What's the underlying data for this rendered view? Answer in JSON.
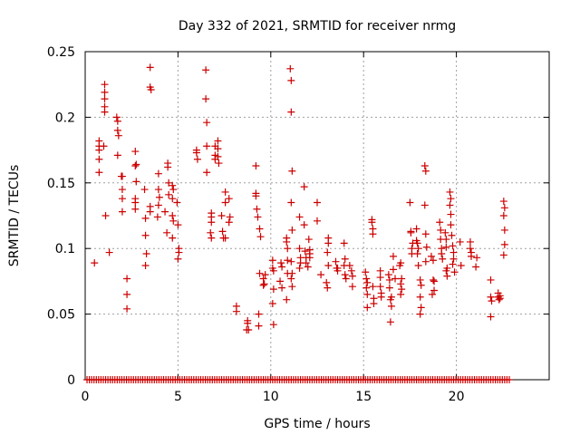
{
  "chart_data": {
    "type": "scatter",
    "title": "Day 332 of 2021, SRMTID for receiver nrmg",
    "xlabel": "GPS time / hours",
    "ylabel": "SRMTID / TECUs",
    "xlim": [
      0,
      25
    ],
    "ylim": [
      0,
      0.25
    ],
    "xticks": [
      0,
      5,
      10,
      15,
      20
    ],
    "yticks": [
      0,
      0.05,
      0.1,
      0.15,
      0.2,
      0.25
    ],
    "xtick_labels": [
      "0",
      "5",
      "10",
      "15",
      "20"
    ],
    "ytick_labels": [
      "0",
      "0.05",
      "0.1",
      "0.15",
      "0.2",
      "0.25"
    ],
    "grid": true,
    "marker": "+",
    "marker_color": "#cc0000",
    "zero_line_range": [
      0.1,
      22.9
    ],
    "zero_line_step": 0.125,
    "series": [
      {
        "name": "SRMTID",
        "points": [
          [
            0.5,
            0.089
          ],
          [
            0.75,
            0.182
          ],
          [
            0.75,
            0.178
          ],
          [
            0.75,
            0.175
          ],
          [
            0.75,
            0.168
          ],
          [
            0.75,
            0.158
          ],
          [
            1.05,
            0.225
          ],
          [
            1.05,
            0.219
          ],
          [
            1.05,
            0.214
          ],
          [
            1.05,
            0.208
          ],
          [
            1.05,
            0.204
          ],
          [
            1.0,
            0.178
          ],
          [
            1.1,
            0.125
          ],
          [
            1.3,
            0.097
          ],
          [
            1.7,
            0.2
          ],
          [
            1.75,
            0.197
          ],
          [
            1.75,
            0.19
          ],
          [
            1.8,
            0.186
          ],
          [
            1.75,
            0.171
          ],
          [
            1.95,
            0.155
          ],
          [
            2.0,
            0.155
          ],
          [
            2.0,
            0.145
          ],
          [
            2.0,
            0.138
          ],
          [
            2.0,
            0.128
          ],
          [
            2.25,
            0.077
          ],
          [
            2.25,
            0.065
          ],
          [
            2.25,
            0.054
          ],
          [
            2.7,
            0.174
          ],
          [
            2.7,
            0.163
          ],
          [
            2.75,
            0.164
          ],
          [
            2.75,
            0.151
          ],
          [
            2.7,
            0.138
          ],
          [
            2.7,
            0.135
          ],
          [
            2.7,
            0.13
          ],
          [
            3.2,
            0.145
          ],
          [
            3.25,
            0.123
          ],
          [
            3.25,
            0.11
          ],
          [
            3.3,
            0.096
          ],
          [
            3.25,
            0.087
          ],
          [
            3.5,
            0.238
          ],
          [
            3.5,
            0.223
          ],
          [
            3.55,
            0.221
          ],
          [
            3.5,
            0.132
          ],
          [
            3.5,
            0.128
          ],
          [
            3.95,
            0.157
          ],
          [
            3.95,
            0.145
          ],
          [
            4.0,
            0.139
          ],
          [
            3.95,
            0.133
          ],
          [
            3.9,
            0.124
          ],
          [
            4.3,
            0.128
          ],
          [
            4.45,
            0.165
          ],
          [
            4.45,
            0.162
          ],
          [
            4.5,
            0.15
          ],
          [
            4.5,
            0.141
          ],
          [
            4.4,
            0.112
          ],
          [
            4.7,
            0.148
          ],
          [
            4.75,
            0.145
          ],
          [
            4.7,
            0.138
          ],
          [
            4.7,
            0.125
          ],
          [
            4.75,
            0.121
          ],
          [
            4.7,
            0.108
          ],
          [
            5.0,
            0.118
          ],
          [
            5.05,
            0.1
          ],
          [
            5.05,
            0.097
          ],
          [
            5.0,
            0.092
          ],
          [
            4.95,
            0.135
          ],
          [
            6.0,
            0.175
          ],
          [
            6.0,
            0.173
          ],
          [
            6.05,
            0.168
          ],
          [
            6.5,
            0.236
          ],
          [
            6.5,
            0.214
          ],
          [
            6.55,
            0.196
          ],
          [
            6.55,
            0.178
          ],
          [
            6.55,
            0.158
          ],
          [
            6.8,
            0.127
          ],
          [
            6.8,
            0.124
          ],
          [
            6.8,
            0.12
          ],
          [
            6.75,
            0.112
          ],
          [
            6.8,
            0.108
          ],
          [
            7.0,
            0.178
          ],
          [
            7.0,
            0.171
          ],
          [
            7.0,
            0.168
          ],
          [
            7.15,
            0.182
          ],
          [
            7.15,
            0.176
          ],
          [
            7.15,
            0.17
          ],
          [
            7.2,
            0.165
          ],
          [
            7.35,
            0.125
          ],
          [
            7.4,
            0.113
          ],
          [
            7.45,
            0.108
          ],
          [
            7.55,
            0.108
          ],
          [
            7.55,
            0.143
          ],
          [
            7.55,
            0.135
          ],
          [
            7.75,
            0.138
          ],
          [
            7.8,
            0.124
          ],
          [
            7.75,
            0.12
          ],
          [
            8.15,
            0.056
          ],
          [
            8.15,
            0.052
          ],
          [
            8.75,
            0.045
          ],
          [
            8.75,
            0.043
          ],
          [
            8.7,
            0.038
          ],
          [
            8.8,
            0.038
          ],
          [
            9.2,
            0.163
          ],
          [
            9.2,
            0.142
          ],
          [
            9.2,
            0.14
          ],
          [
            9.25,
            0.13
          ],
          [
            9.3,
            0.124
          ],
          [
            9.4,
            0.115
          ],
          [
            9.45,
            0.109
          ],
          [
            9.4,
            0.081
          ],
          [
            9.35,
            0.05
          ],
          [
            9.35,
            0.041
          ],
          [
            9.6,
            0.077
          ],
          [
            9.6,
            0.072
          ],
          [
            9.65,
            0.073
          ],
          [
            9.7,
            0.08
          ],
          [
            10.1,
            0.091
          ],
          [
            10.1,
            0.085
          ],
          [
            10.15,
            0.083
          ],
          [
            10.15,
            0.069
          ],
          [
            10.1,
            0.058
          ],
          [
            10.15,
            0.042
          ],
          [
            10.5,
            0.075
          ],
          [
            10.55,
            0.089
          ],
          [
            10.6,
            0.086
          ],
          [
            10.6,
            0.07
          ],
          [
            10.85,
            0.108
          ],
          [
            10.85,
            0.105
          ],
          [
            10.9,
            0.1
          ],
          [
            10.9,
            0.091
          ],
          [
            10.9,
            0.081
          ],
          [
            10.85,
            0.061
          ],
          [
            11.05,
            0.237
          ],
          [
            11.1,
            0.228
          ],
          [
            11.1,
            0.204
          ],
          [
            11.15,
            0.159
          ],
          [
            11.1,
            0.135
          ],
          [
            11.15,
            0.114
          ],
          [
            11.1,
            0.09
          ],
          [
            11.15,
            0.081
          ],
          [
            11.1,
            0.077
          ],
          [
            11.15,
            0.071
          ],
          [
            11.55,
            0.124
          ],
          [
            11.55,
            0.1
          ],
          [
            11.6,
            0.093
          ],
          [
            11.6,
            0.089
          ],
          [
            11.55,
            0.085
          ],
          [
            11.8,
            0.147
          ],
          [
            11.8,
            0.118
          ],
          [
            11.85,
            0.098
          ],
          [
            11.9,
            0.093
          ],
          [
            11.9,
            0.089
          ],
          [
            12.0,
            0.086
          ],
          [
            12.05,
            0.107
          ],
          [
            12.1,
            0.099
          ],
          [
            12.1,
            0.096
          ],
          [
            12.1,
            0.093
          ],
          [
            12.5,
            0.135
          ],
          [
            12.5,
            0.121
          ],
          [
            12.7,
            0.08
          ],
          [
            13.1,
            0.108
          ],
          [
            13.1,
            0.104
          ],
          [
            13.05,
            0.097
          ],
          [
            13.1,
            0.087
          ],
          [
            13.0,
            0.074
          ],
          [
            13.05,
            0.07
          ],
          [
            13.5,
            0.09
          ],
          [
            13.55,
            0.085
          ],
          [
            13.6,
            0.083
          ],
          [
            13.6,
            0.085
          ],
          [
            13.95,
            0.104
          ],
          [
            14.0,
            0.092
          ],
          [
            13.95,
            0.087
          ],
          [
            14.0,
            0.08
          ],
          [
            14.05,
            0.077
          ],
          [
            14.25,
            0.087
          ],
          [
            14.35,
            0.083
          ],
          [
            14.4,
            0.079
          ],
          [
            14.4,
            0.071
          ],
          [
            15.1,
            0.082
          ],
          [
            15.15,
            0.077
          ],
          [
            15.2,
            0.074
          ],
          [
            15.15,
            0.07
          ],
          [
            15.2,
            0.065
          ],
          [
            15.2,
            0.055
          ],
          [
            15.45,
            0.122
          ],
          [
            15.45,
            0.12
          ],
          [
            15.5,
            0.115
          ],
          [
            15.5,
            0.111
          ],
          [
            15.5,
            0.071
          ],
          [
            15.55,
            0.062
          ],
          [
            15.55,
            0.058
          ],
          [
            15.9,
            0.083
          ],
          [
            15.9,
            0.078
          ],
          [
            15.9,
            0.071
          ],
          [
            15.95,
            0.066
          ],
          [
            15.95,
            0.063
          ],
          [
            16.35,
            0.08
          ],
          [
            16.4,
            0.076
          ],
          [
            16.4,
            0.07
          ],
          [
            16.5,
            0.063
          ],
          [
            16.45,
            0.061
          ],
          [
            16.5,
            0.056
          ],
          [
            16.45,
            0.044
          ],
          [
            16.6,
            0.094
          ],
          [
            16.6,
            0.084
          ],
          [
            16.7,
            0.077
          ],
          [
            16.95,
            0.087
          ],
          [
            17.0,
            0.089
          ],
          [
            17.05,
            0.077
          ],
          [
            17.0,
            0.073
          ],
          [
            17.05,
            0.069
          ],
          [
            17.0,
            0.065
          ],
          [
            17.5,
            0.135
          ],
          [
            17.55,
            0.113
          ],
          [
            17.55,
            0.112
          ],
          [
            17.6,
            0.1
          ],
          [
            17.6,
            0.096
          ],
          [
            17.65,
            0.104
          ],
          [
            17.85,
            0.115
          ],
          [
            17.85,
            0.106
          ],
          [
            17.9,
            0.104
          ],
          [
            17.95,
            0.1
          ],
          [
            17.9,
            0.096
          ],
          [
            17.95,
            0.087
          ],
          [
            18.05,
            0.076
          ],
          [
            18.1,
            0.072
          ],
          [
            18.05,
            0.063
          ],
          [
            18.1,
            0.055
          ],
          [
            18.05,
            0.05
          ],
          [
            18.3,
            0.163
          ],
          [
            18.35,
            0.159
          ],
          [
            18.3,
            0.133
          ],
          [
            18.35,
            0.111
          ],
          [
            18.4,
            0.101
          ],
          [
            18.35,
            0.09
          ],
          [
            18.65,
            0.094
          ],
          [
            18.75,
            0.091
          ],
          [
            18.75,
            0.076
          ],
          [
            18.8,
            0.075
          ],
          [
            18.7,
            0.065
          ],
          [
            18.8,
            0.068
          ],
          [
            19.1,
            0.12
          ],
          [
            19.15,
            0.114
          ],
          [
            19.15,
            0.107
          ],
          [
            19.2,
            0.1
          ],
          [
            19.2,
            0.096
          ],
          [
            19.25,
            0.092
          ],
          [
            19.4,
            0.112
          ],
          [
            19.45,
            0.107
          ],
          [
            19.45,
            0.101
          ],
          [
            19.5,
            0.085
          ],
          [
            19.45,
            0.083
          ],
          [
            19.5,
            0.079
          ],
          [
            19.65,
            0.143
          ],
          [
            19.7,
            0.138
          ],
          [
            19.65,
            0.133
          ],
          [
            19.7,
            0.126
          ],
          [
            19.7,
            0.118
          ],
          [
            19.75,
            0.11
          ],
          [
            19.8,
            0.102
          ],
          [
            19.85,
            0.097
          ],
          [
            19.85,
            0.092
          ],
          [
            19.8,
            0.088
          ],
          [
            19.9,
            0.082
          ],
          [
            20.2,
            0.105
          ],
          [
            20.25,
            0.087
          ],
          [
            20.75,
            0.105
          ],
          [
            20.75,
            0.1
          ],
          [
            20.8,
            0.094
          ],
          [
            20.8,
            0.097
          ],
          [
            21.05,
            0.086
          ],
          [
            21.1,
            0.093
          ],
          [
            21.85,
            0.076
          ],
          [
            21.85,
            0.063
          ],
          [
            21.9,
            0.06
          ],
          [
            21.85,
            0.048
          ],
          [
            22.25,
            0.066
          ],
          [
            22.25,
            0.063
          ],
          [
            22.3,
            0.061
          ],
          [
            22.35,
            0.064
          ],
          [
            22.35,
            0.062
          ],
          [
            22.55,
            0.136
          ],
          [
            22.6,
            0.131
          ],
          [
            22.55,
            0.125
          ],
          [
            22.6,
            0.114
          ],
          [
            22.6,
            0.103
          ],
          [
            22.55,
            0.095
          ]
        ]
      }
    ]
  }
}
